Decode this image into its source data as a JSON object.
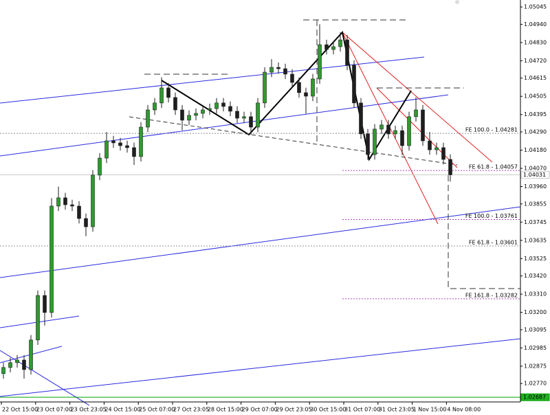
{
  "chart_data": {
    "type": "candlestick",
    "ylim": [
      1.02667,
      1.05087
    ],
    "yticks": [
      1.05045,
      {
        "value": 1.0494,
        "label": "1.04940"
      },
      {
        "value": 1.0483,
        "label": "1.04830"
      },
      {
        "value": 1.0472,
        "label": "1.04720"
      },
      1.04615,
      1.04505,
      1.04395,
      {
        "value": 1.0429,
        "label": "1.04290"
      },
      {
        "value": 1.0418,
        "label": "1.04180"
      },
      {
        "value": 1.0407,
        "label": "1.04070"
      },
      {
        "value": 1.0396,
        "label": "1.03960"
      },
      1.03855,
      1.03745,
      1.03635,
      1.03525,
      {
        "value": 1.0342,
        "label": "1.03420"
      },
      {
        "value": 1.0331,
        "label": "1.03310"
      },
      {
        "value": 1.032,
        "label": "1.03200"
      },
      1.03095,
      1.02985,
      1.02875,
      {
        "value": 1.0277,
        "label": "1.02770"
      }
    ],
    "x_labels": [
      "22 Oct 15:00",
      "23 Oct 07:00",
      "23 Oct 23:05",
      "24 Oct 15:00",
      "25 Oct 07:00",
      "27 Oct 23:05",
      "28 Oct 15:00",
      "29 Oct 07:00",
      "29 Oct 23:05",
      "30 Oct 15:00",
      "31 Oct 07:00",
      "31 Oct 23:05",
      "1 Nov 15:00",
      "4 Nov 08:00"
    ],
    "up_color": "#2f9a2f",
    "down_color": "#1e1e1e",
    "ohlc": [
      [
        1.0283,
        1.02897,
        1.028,
        1.02867
      ],
      [
        1.02867,
        1.02926,
        1.02837,
        1.02896
      ],
      [
        1.02896,
        1.02942,
        1.02866,
        1.02912
      ],
      [
        1.02912,
        1.02942,
        1.028,
        1.02854
      ],
      [
        1.02854,
        1.03063,
        1.02824,
        1.03033
      ],
      [
        1.03033,
        1.03332,
        1.03003,
        1.03302
      ],
      [
        1.03302,
        1.03332,
        1.0312,
        1.03199
      ],
      [
        1.03199,
        1.0389,
        1.03169,
        1.03842
      ],
      [
        1.03842,
        1.0396,
        1.03812,
        1.03892
      ],
      [
        1.03892,
        1.03922,
        1.0382,
        1.0385
      ],
      [
        1.0385,
        1.0388,
        1.03812,
        1.03842
      ],
      [
        1.03842,
        1.03872,
        1.03737,
        1.03767
      ],
      [
        1.03767,
        1.03797,
        1.0366,
        1.03717
      ],
      [
        1.03717,
        1.04059,
        1.03687,
        1.04029
      ],
      [
        1.04029,
        1.04162,
        1.03999,
        1.04132
      ],
      [
        1.04132,
        1.0429,
        1.04102,
        1.04236
      ],
      [
        1.04236,
        1.04266,
        1.04194,
        1.04224
      ],
      [
        1.04224,
        1.04254,
        1.04177,
        1.04207
      ],
      [
        1.04207,
        1.04237,
        1.04165,
        1.04195
      ],
      [
        1.04195,
        1.04225,
        1.0409,
        1.04141
      ],
      [
        1.04141,
        1.04349,
        1.04111,
        1.04319
      ],
      [
        1.04319,
        1.04453,
        1.04289,
        1.04423
      ],
      [
        1.04423,
        1.04495,
        1.04393,
        1.04465
      ],
      [
        1.04465,
        1.0462,
        1.04435,
        1.04556
      ],
      [
        1.04556,
        1.04586,
        1.04468,
        1.04498
      ],
      [
        1.04498,
        1.04528,
        1.04393,
        1.04423
      ],
      [
        1.04423,
        1.04453,
        1.043,
        1.04361
      ],
      [
        1.04361,
        1.0442,
        1.04331,
        1.0439
      ],
      [
        1.0439,
        1.04432,
        1.0436,
        1.04402
      ],
      [
        1.04402,
        1.04453,
        1.04372,
        1.04423
      ],
      [
        1.04423,
        1.04461,
        1.04393,
        1.04431
      ],
      [
        1.04431,
        1.04495,
        1.04401,
        1.04465
      ],
      [
        1.04465,
        1.04495,
        1.04414,
        1.04444
      ],
      [
        1.04444,
        1.04474,
        1.04385,
        1.04415
      ],
      [
        1.04415,
        1.04445,
        1.04343,
        1.04373
      ],
      [
        1.04373,
        1.04412,
        1.04343,
        1.04382
      ],
      [
        1.04382,
        1.04412,
        1.04274,
        1.04319
      ],
      [
        1.04319,
        1.04495,
        1.04289,
        1.04465
      ],
      [
        1.04465,
        1.04681,
        1.04435,
        1.04651
      ],
      [
        1.04651,
        1.0473,
        1.04621,
        1.0468
      ],
      [
        1.0468,
        1.0471,
        1.04642,
        1.04672
      ],
      [
        1.04672,
        1.04702,
        1.04609,
        1.04639
      ],
      [
        1.04639,
        1.04669,
        1.04559,
        1.04589
      ],
      [
        1.04589,
        1.04619,
        1.04497,
        1.04527
      ],
      [
        1.04527,
        1.04557,
        1.044,
        1.04506
      ],
      [
        1.04506,
        1.0464,
        1.04476,
        1.0461
      ],
      [
        1.0461,
        1.0494,
        1.0458,
        1.04817
      ],
      [
        1.04817,
        1.04847,
        1.04758,
        1.04788
      ],
      [
        1.04788,
        1.04835,
        1.04758,
        1.04805
      ],
      [
        1.04805,
        1.04892,
        1.04775,
        1.04846
      ],
      [
        1.04846,
        1.04876,
        1.04663,
        1.04693
      ],
      [
        1.04693,
        1.04723,
        1.04435,
        1.04465
      ],
      [
        1.04465,
        1.04495,
        1.04248,
        1.04278
      ],
      [
        1.04278,
        1.04308,
        1.0412,
        1.04153
      ],
      [
        1.04153,
        1.04337,
        1.04123,
        1.04307
      ],
      [
        1.04307,
        1.04362,
        1.04277,
        1.04332
      ],
      [
        1.04332,
        1.04362,
        1.04248,
        1.04278
      ],
      [
        1.04278,
        1.04328,
        1.04248,
        1.04298
      ],
      [
        1.04298,
        1.04328,
        1.0415,
        1.04207
      ],
      [
        1.04207,
        1.04412,
        1.04177,
        1.04382
      ],
      [
        1.04382,
        1.045,
        1.04352,
        1.04423
      ],
      [
        1.04423,
        1.04453,
        1.04206,
        1.04236
      ],
      [
        1.04236,
        1.0429,
        1.04152,
        1.04182
      ],
      [
        1.04182,
        1.04225,
        1.04152,
        1.04195
      ],
      [
        1.04195,
        1.04225,
        1.04094,
        1.04124
      ],
      [
        1.04124,
        1.04154,
        1.0399,
        1.04031
      ]
    ],
    "annotations": [
      {
        "label": "FE 100.0 - 1.04281",
        "value": 1.04281,
        "color": "#8c8ca0",
        "full": true
      },
      {
        "label": "FE 61.8 - 1.04057",
        "value": 1.04057,
        "color": "#b040c0",
        "full": false
      },
      {
        "label": "FE 100.0 - 1.03761",
        "value": 1.03761,
        "color": "#b040c0",
        "full": false
      },
      {
        "label": "FE 61.8 - 1.03601",
        "value": 1.03601,
        "color": "#8c8ca0",
        "full": true
      },
      {
        "label": "FE 161.8 - 1.03282",
        "value": 1.03282,
        "color": "#b040c0",
        "full": false
      }
    ],
    "price_levels": [
      {
        "value": 1.04031,
        "color": "#c8c8c8",
        "bg": "#ffffff"
      },
      {
        "value": 1.02687,
        "color": "#00a000",
        "bg": "#22b022"
      }
    ]
  }
}
